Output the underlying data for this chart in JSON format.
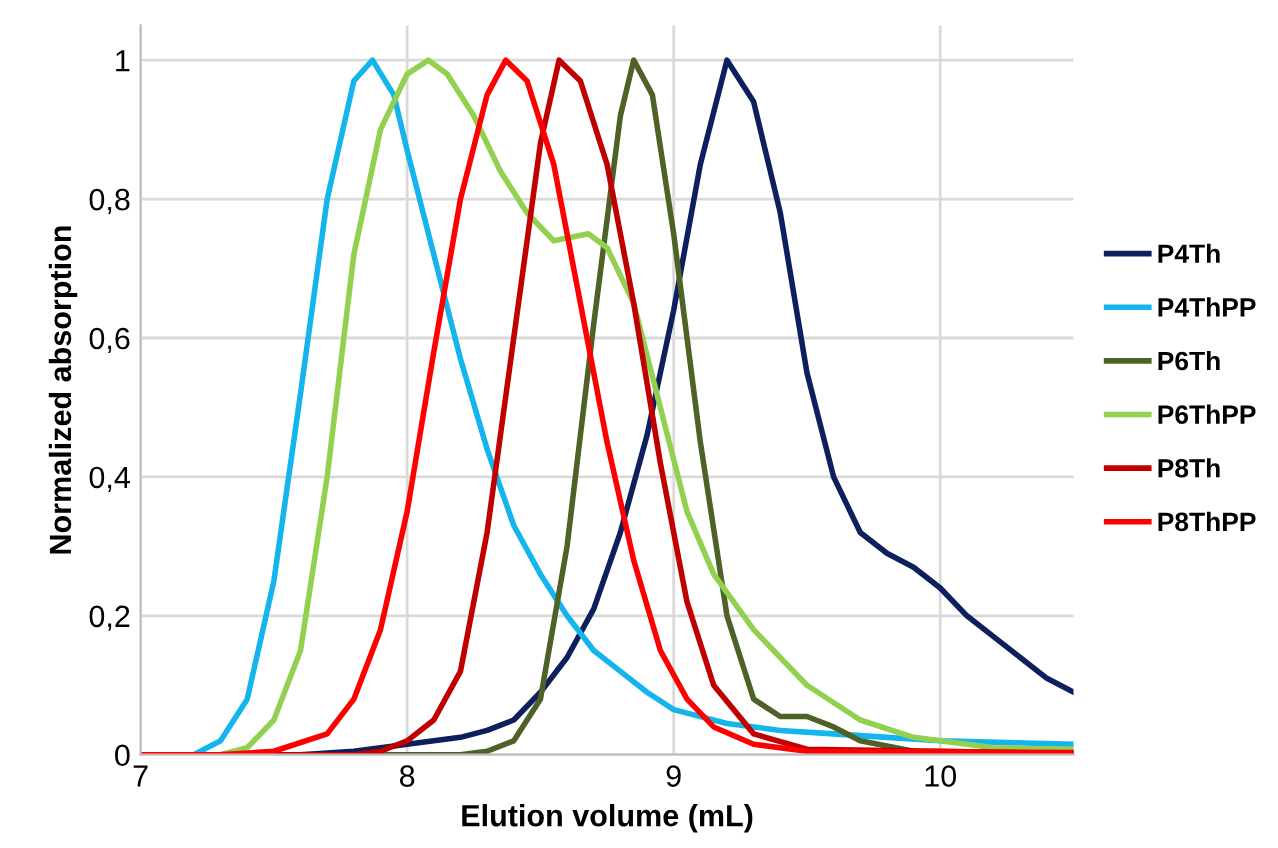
{
  "chart_data": {
    "type": "line",
    "xlabel": "Elution volume (mL)",
    "ylabel": "Normalized absorption",
    "xlim": [
      7,
      10.5
    ],
    "ylim": [
      0,
      1.05
    ],
    "xticks": [
      7,
      8,
      9,
      10
    ],
    "yticks": [
      0,
      {
        "value": 0.2,
        "label": "0,2"
      },
      {
        "value": 0.4,
        "label": "0,4"
      },
      {
        "value": 0.6,
        "label": "0,6"
      },
      {
        "value": 0.8,
        "label": "0,8"
      },
      1
    ],
    "grid": true,
    "legend": "right",
    "marker": "none",
    "line_style": "solid",
    "series": [
      {
        "name": "P4Th",
        "color": "#0d1f5c",
        "x": [
          7.6,
          7.8,
          8.0,
          8.2,
          8.3,
          8.4,
          8.5,
          8.6,
          8.7,
          8.8,
          8.9,
          9.0,
          9.1,
          9.2,
          9.3,
          9.4,
          9.5,
          9.6,
          9.7,
          9.8,
          9.9,
          10.0,
          10.1,
          10.2,
          10.3,
          10.4,
          10.5
        ],
        "values": [
          0,
          0.005,
          0.015,
          0.025,
          0.035,
          0.05,
          0.09,
          0.14,
          0.21,
          0.32,
          0.46,
          0.64,
          0.85,
          1.0,
          0.94,
          0.78,
          0.55,
          0.4,
          0.32,
          0.29,
          0.27,
          0.24,
          0.2,
          0.17,
          0.14,
          0.11,
          0.09
        ]
      },
      {
        "name": "P4ThPP",
        "color": "#14b4ec",
        "x": [
          7.0,
          7.2,
          7.3,
          7.4,
          7.5,
          7.6,
          7.7,
          7.8,
          7.87,
          7.95,
          8.0,
          8.1,
          8.2,
          8.3,
          8.4,
          8.5,
          8.6,
          8.7,
          8.8,
          8.9,
          9.0,
          9.2,
          9.4,
          9.6,
          9.8,
          10.0,
          10.5
        ],
        "values": [
          0,
          0,
          0.02,
          0.08,
          0.25,
          0.52,
          0.8,
          0.97,
          1.0,
          0.95,
          0.87,
          0.72,
          0.57,
          0.44,
          0.33,
          0.26,
          0.2,
          0.15,
          0.12,
          0.09,
          0.065,
          0.045,
          0.035,
          0.03,
          0.025,
          0.02,
          0.015
        ]
      },
      {
        "name": "P6Th",
        "color": "#4e6228",
        "x": [
          7.0,
          8.2,
          8.3,
          8.4,
          8.5,
          8.6,
          8.7,
          8.8,
          8.85,
          8.92,
          9.0,
          9.1,
          9.2,
          9.3,
          9.4,
          9.5,
          9.6,
          9.7,
          9.9,
          10.5
        ],
        "values": [
          0,
          0,
          0.005,
          0.02,
          0.08,
          0.3,
          0.62,
          0.92,
          1.0,
          0.95,
          0.75,
          0.45,
          0.2,
          0.08,
          0.055,
          0.055,
          0.04,
          0.02,
          0.005,
          0.003
        ]
      },
      {
        "name": "P6ThPP",
        "color": "#92d050",
        "x": [
          7.0,
          7.3,
          7.4,
          7.5,
          7.6,
          7.7,
          7.8,
          7.9,
          8.0,
          8.08,
          8.15,
          8.25,
          8.35,
          8.45,
          8.55,
          8.68,
          8.75,
          8.85,
          8.95,
          9.05,
          9.15,
          9.3,
          9.5,
          9.7,
          9.9,
          10.2,
          10.5
        ],
        "values": [
          0,
          0,
          0.01,
          0.05,
          0.15,
          0.4,
          0.72,
          0.9,
          0.98,
          1.0,
          0.98,
          0.92,
          0.84,
          0.78,
          0.74,
          0.75,
          0.73,
          0.65,
          0.5,
          0.35,
          0.26,
          0.18,
          0.1,
          0.05,
          0.025,
          0.01,
          0.008
        ]
      },
      {
        "name": "P8Th",
        "color": "#c00000",
        "x": [
          7.0,
          7.8,
          7.9,
          8.0,
          8.1,
          8.2,
          8.3,
          8.4,
          8.5,
          8.57,
          8.65,
          8.75,
          8.85,
          8.95,
          9.05,
          9.15,
          9.3,
          9.5,
          10.5
        ],
        "values": [
          0,
          0,
          0.005,
          0.02,
          0.05,
          0.12,
          0.32,
          0.6,
          0.88,
          1.0,
          0.97,
          0.85,
          0.65,
          0.42,
          0.22,
          0.1,
          0.03,
          0.008,
          0.002
        ]
      },
      {
        "name": "P8ThPP",
        "color": "#ff0000",
        "x": [
          7.0,
          7.3,
          7.5,
          7.7,
          7.8,
          7.9,
          8.0,
          8.1,
          8.2,
          8.3,
          8.37,
          8.45,
          8.55,
          8.65,
          8.75,
          8.85,
          8.95,
          9.05,
          9.15,
          9.3,
          9.5,
          10.5
        ],
        "values": [
          0,
          0,
          0.005,
          0.03,
          0.08,
          0.18,
          0.35,
          0.58,
          0.8,
          0.95,
          1.0,
          0.97,
          0.85,
          0.65,
          0.45,
          0.28,
          0.15,
          0.08,
          0.04,
          0.015,
          0.005,
          0.003
        ]
      }
    ]
  }
}
